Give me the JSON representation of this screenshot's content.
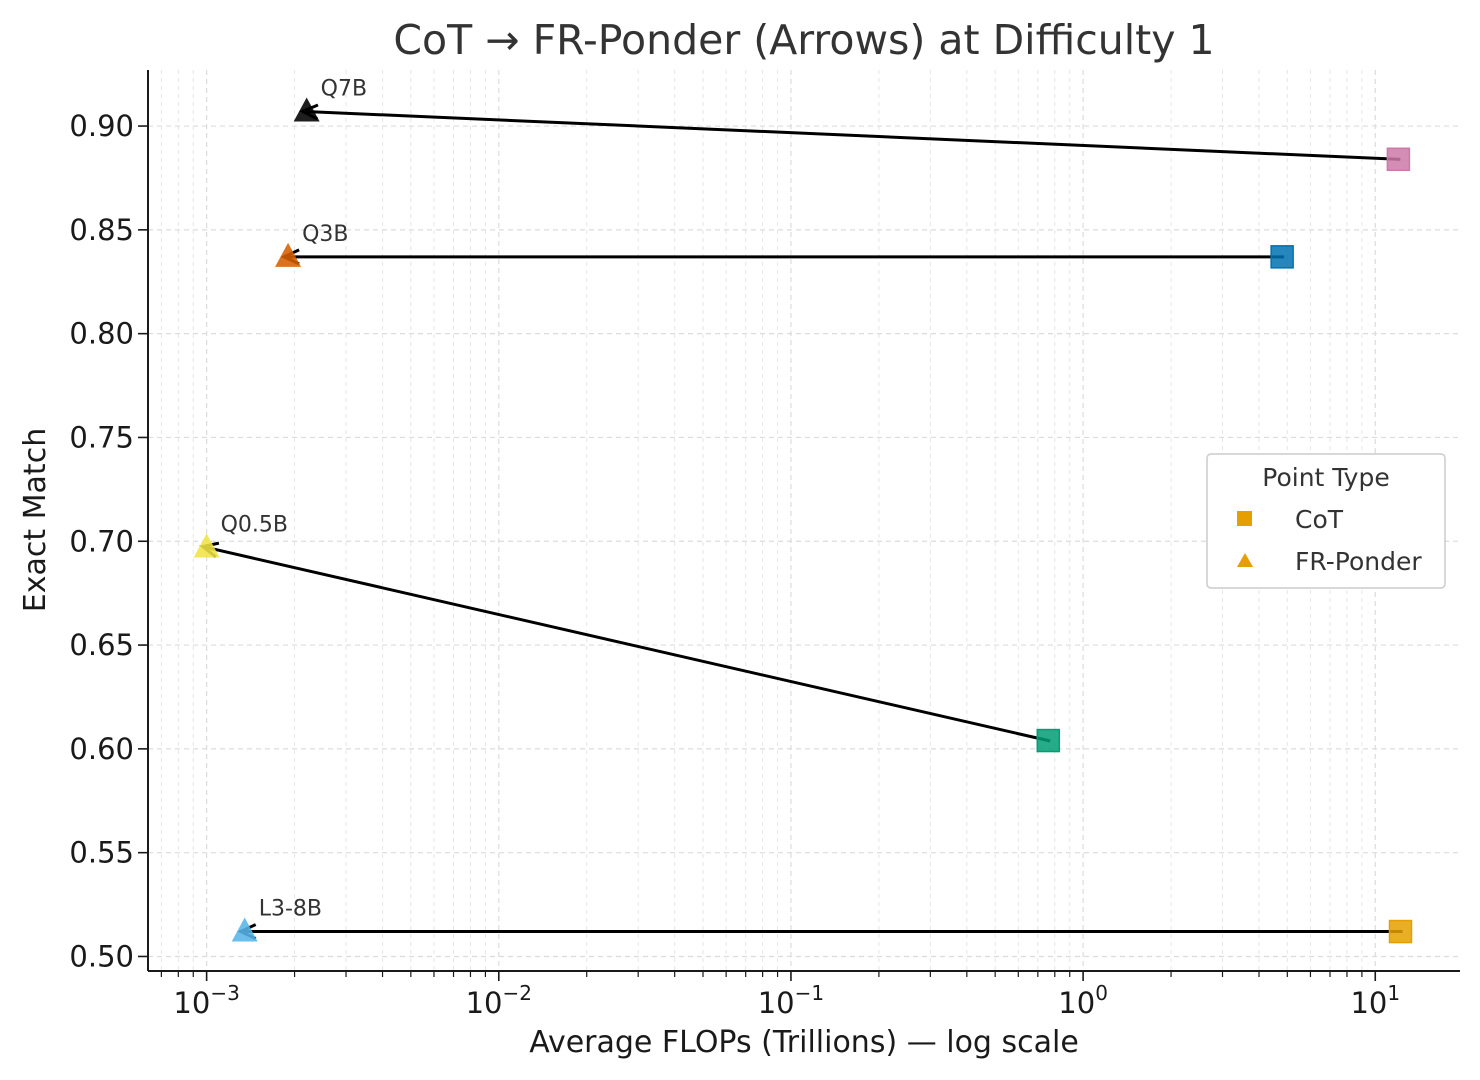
{
  "chart_data": {
    "type": "scatter",
    "title": "CoT → FR-Ponder (Arrows) at Difficulty 1",
    "xlabel": "Average FLOPs (Trillions) — log scale",
    "ylabel": "Exact Match",
    "xscale": "log",
    "xlim": [
      0.00063,
      19.5
    ],
    "ylim": [
      0.493,
      0.927
    ],
    "x_ticks": [
      {
        "value": 0.001,
        "base": "10",
        "exp": "−3"
      },
      {
        "value": 0.01,
        "base": "10",
        "exp": "−2"
      },
      {
        "value": 0.1,
        "base": "10",
        "exp": "−1"
      },
      {
        "value": 1,
        "base": "10",
        "exp": "0"
      },
      {
        "value": 10,
        "base": "10",
        "exp": "1"
      }
    ],
    "y_ticks": [
      {
        "value": 0.5,
        "label": "0.50"
      },
      {
        "value": 0.55,
        "label": "0.55"
      },
      {
        "value": 0.6,
        "label": "0.60"
      },
      {
        "value": 0.65,
        "label": "0.65"
      },
      {
        "value": 0.7,
        "label": "0.70"
      },
      {
        "value": 0.75,
        "label": "0.75"
      },
      {
        "value": 0.8,
        "label": "0.80"
      },
      {
        "value": 0.85,
        "label": "0.85"
      },
      {
        "value": 0.9,
        "label": "0.90"
      }
    ],
    "grid": true,
    "legend": {
      "title": "Point Type",
      "placement": "center-right",
      "entries": [
        {
          "label": "CoT",
          "marker": "square",
          "color": "#E69F00"
        },
        {
          "label": "FR-Ponder",
          "marker": "triangle",
          "color": "#E69F00"
        }
      ]
    },
    "models": [
      {
        "label": "Q7B",
        "cot": {
          "x": 12.0,
          "y": 0.884
        },
        "fr_ponder": {
          "x": 0.0022,
          "y": 0.907
        },
        "cot_color": "#CC79A7",
        "fr_color": "#000000"
      },
      {
        "label": "Q3B",
        "cot": {
          "x": 4.8,
          "y": 0.837
        },
        "fr_ponder": {
          "x": 0.0019,
          "y": 0.837
        },
        "cot_color": "#0072B2",
        "fr_color": "#D55E00"
      },
      {
        "label": "Q0.5B",
        "cot": {
          "x": 0.76,
          "y": 0.604
        },
        "fr_ponder": {
          "x": 0.001,
          "y": 0.697
        },
        "cot_color": "#009E73",
        "fr_color": "#F0E442"
      },
      {
        "label": "L3-8B",
        "cot": {
          "x": 12.2,
          "y": 0.512
        },
        "fr_ponder": {
          "x": 0.00135,
          "y": 0.512
        },
        "cot_color": "#E69F00",
        "fr_color": "#56B4E9"
      }
    ]
  }
}
